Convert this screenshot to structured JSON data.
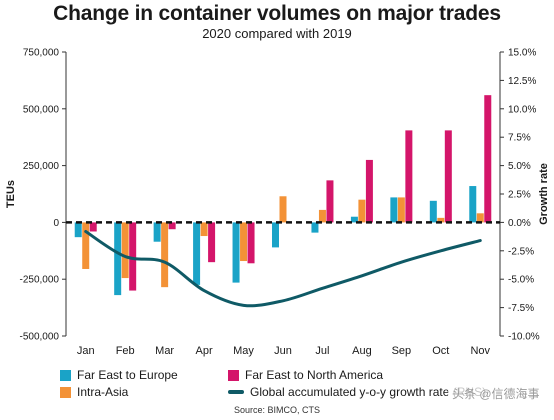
{
  "title": "Change in container volumes on major trades",
  "subtitle": "2020 compared with 2019",
  "source": "Source: BIMCO, CTS",
  "watermark": "头条 @信德海事",
  "colors": {
    "far_east_europe": "#1aa3c7",
    "intra_asia": "#f39237",
    "far_east_north_america": "#d4156a",
    "growth_line": "#0f5a66"
  },
  "chart_data": {
    "type": "bar",
    "categories": [
      "Jan",
      "Feb",
      "Mar",
      "Apr",
      "May",
      "Jun",
      "Jul",
      "Aug",
      "Sep",
      "Oct",
      "Nov"
    ],
    "ylabel": "TEUs",
    "y2label": "Growth rate",
    "ylim": [
      -500000,
      750000
    ],
    "y2lim": [
      -10.0,
      15.0
    ],
    "yticks": [
      -500000,
      -250000,
      0,
      250000,
      500000,
      750000
    ],
    "ytick_labels": [
      "-500,000",
      "-250,000",
      "0",
      "250,000",
      "500,000",
      "750,000"
    ],
    "y2ticks": [
      -10,
      -7.5,
      -5,
      -2.5,
      0,
      2.5,
      5,
      7.5,
      10,
      12.5,
      15
    ],
    "y2tick_labels": [
      "-10.0%",
      "-7.5%",
      "-5.0%",
      "-2.5%",
      "0.0%",
      "2.5%",
      "5.0%",
      "7.5%",
      "10.0%",
      "12.5%",
      "15.0%"
    ],
    "series": [
      {
        "name": "Far East to Europe",
        "values": [
          -65000,
          -320000,
          -85000,
          -275000,
          -265000,
          -110000,
          -45000,
          25000,
          110000,
          95000,
          160000
        ]
      },
      {
        "name": "Intra-Asia",
        "values": [
          -205000,
          -245000,
          -285000,
          -60000,
          -170000,
          115000,
          55000,
          100000,
          110000,
          20000,
          40000
        ]
      },
      {
        "name": "Far East to North America",
        "values": [
          -40000,
          -300000,
          -30000,
          -175000,
          -180000,
          0,
          185000,
          275000,
          405000,
          405000,
          560000
        ]
      },
      {
        "name": "Global accumulated y-o-y growth rate (RHS)",
        "axis": "right",
        "values": [
          -0.8,
          -3.0,
          -3.5,
          -6.0,
          -7.3,
          -6.9,
          -5.8,
          -4.7,
          -3.5,
          -2.5,
          -1.6
        ]
      }
    ],
    "zero_line": "dashed",
    "legend_position": "bottom"
  },
  "legend": [
    {
      "label": "Far East to Europe",
      "color": "#1aa3c7"
    },
    {
      "label": "Far East to North America",
      "color": "#d4156a"
    },
    {
      "label": "Intra-Asia",
      "color": "#f39237"
    },
    {
      "label": "Global accumulated y-o-y growth rate (RHS)",
      "color": "#0f5a66"
    }
  ]
}
